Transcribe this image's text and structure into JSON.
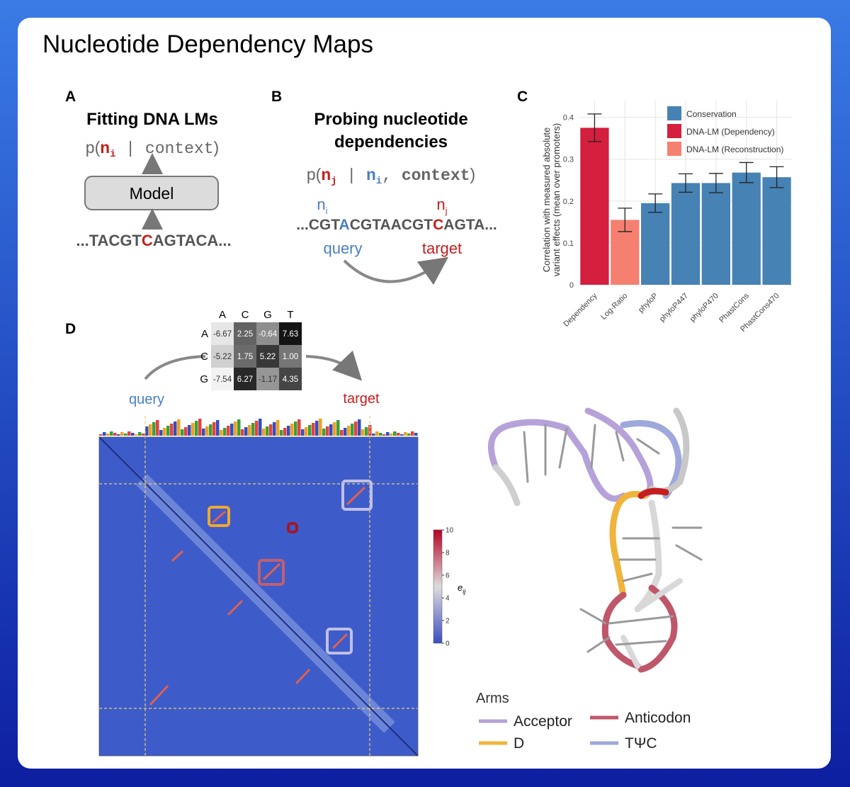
{
  "title": "Nucleotide Dependency Maps",
  "panel_labels": [
    "A",
    "B",
    "C",
    "D"
  ],
  "panel_a": {
    "heading": "Fitting DNA LMs",
    "formula": [
      "p(",
      "n",
      "i",
      " | ",
      "context",
      ")"
    ],
    "model": "Model",
    "sequence": [
      "...TACGT",
      "C",
      "AGTACA..."
    ]
  },
  "panel_b": {
    "heading": [
      "Probing nucleotide",
      "dependencies"
    ],
    "formula": [
      "p(",
      "n",
      "j",
      " | ",
      "n",
      "i",
      ", ",
      "context",
      ")"
    ],
    "query_symbol": [
      "n",
      "i"
    ],
    "target_symbol": [
      "n",
      "j"
    ],
    "sequence": [
      "...CGT",
      "A",
      "CGTAACGT",
      "C",
      "AGTA..."
    ],
    "query": "query",
    "target": "target"
  },
  "chart_data": {
    "type": "bar",
    "ylabel": [
      "Correlation with measured absolute",
      "variant effects (mean over promoters)"
    ],
    "categories": [
      "Dependency",
      "Log-Ratio",
      "phyloP",
      "phyloP447",
      "phyloP470",
      "PhastCons",
      "PhastCons470"
    ],
    "values": [
      0.375,
      0.155,
      0.195,
      0.243,
      0.243,
      0.268,
      0.257
    ],
    "errors": [
      0.033,
      0.028,
      0.022,
      0.022,
      0.023,
      0.024,
      0.025
    ],
    "colors": [
      "#d41f3e",
      "#f5806f",
      "#4682b4",
      "#4682b4",
      "#4682b4",
      "#4682b4",
      "#4682b4"
    ],
    "legend": [
      {
        "name": "Conservation",
        "color": "#4682b4"
      },
      {
        "name": "DNA-LM (Dependency)",
        "color": "#d41f3e"
      },
      {
        "name": "DNA-LM (Reconstruction)",
        "color": "#f5806f"
      }
    ],
    "legend_position": "upper right",
    "ylim": [
      0,
      0.44
    ],
    "yticks": [
      0,
      0.1,
      0.2,
      0.3,
      0.4
    ],
    "grid": true
  },
  "panel_d": {
    "matrix": {
      "columns": [
        "A",
        "C",
        "G",
        "T"
      ],
      "rows": [
        {
          "label": "A",
          "values": [
            -6.67,
            2.25,
            -0.64,
            7.63
          ]
        },
        {
          "label": "C",
          "values": [
            -5.22,
            1.75,
            5.22,
            {
              "value": 1,
              "label": "1.00"
            }
          ]
        },
        {
          "label": "G",
          "values": [
            -7.54,
            6.27,
            -1.17,
            4.35
          ]
        }
      ]
    },
    "query": "query",
    "target": "target",
    "colorbar": {
      "label": [
        "e",
        "ij"
      ],
      "range": [
        0,
        10
      ],
      "ticks": [
        0,
        2,
        4,
        6,
        8,
        10
      ]
    },
    "arms": {
      "title": "Arms",
      "items": [
        {
          "name": "Acceptor",
          "color": "#b6a2d9"
        },
        {
          "name": "Anticodon",
          "color": "#c0566a"
        },
        {
          "name": "D",
          "color": "#f0b43c"
        },
        {
          "name": "TΨC",
          "color": "#9ea8dc"
        }
      ]
    }
  }
}
